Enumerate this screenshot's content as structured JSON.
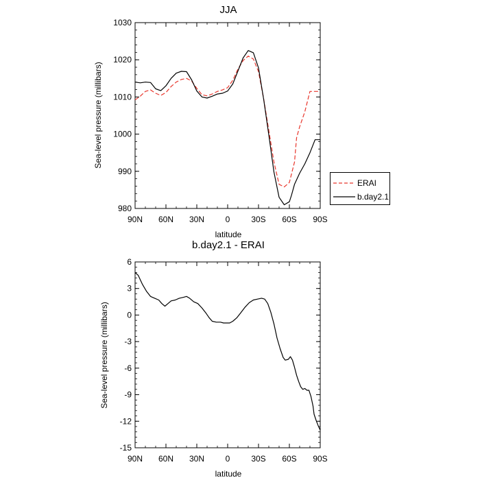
{
  "chart_data": [
    {
      "type": "line",
      "title": "JJA",
      "xlabel": "latitude",
      "ylabel": "Sea-level pressure (millibars)",
      "xlim": [
        90,
        -90
      ],
      "ylim": [
        980,
        1030
      ],
      "xticks": [
        90,
        60,
        30,
        0,
        -30,
        -60,
        -90
      ],
      "xtick_labels": [
        "90N",
        "60N",
        "30N",
        "0",
        "30S",
        "60S",
        "90S"
      ],
      "yticks": [
        980,
        990,
        1000,
        1010,
        1020,
        1030
      ],
      "ytick_labels": [
        "980",
        "990",
        "1000",
        "1010",
        "1020",
        "1030"
      ],
      "grid": false,
      "legend": "right-bottom",
      "series": [
        {
          "name": "ERAI",
          "color": "#e8342a",
          "dash": "dashed",
          "x": [
            90,
            85,
            80,
            75,
            70,
            65,
            60,
            55,
            50,
            45,
            40,
            35,
            30,
            25,
            20,
            15,
            10,
            5,
            0,
            -5,
            -10,
            -15,
            -20,
            -25,
            -30,
            -35,
            -40,
            -45,
            -50,
            -55,
            -60,
            -65,
            -67,
            -70,
            -75,
            -80,
            -85,
            -90
          ],
          "values": [
            1009.2,
            1010.2,
            1011.5,
            1011.9,
            1011.0,
            1010.4,
            1011.2,
            1012.8,
            1014.0,
            1014.7,
            1015.0,
            1014.3,
            1012.3,
            1010.6,
            1010.3,
            1010.8,
            1011.5,
            1011.9,
            1012.5,
            1014.5,
            1017.5,
            1019.8,
            1021.0,
            1020.2,
            1016.8,
            1009.5,
            1001.0,
            992.5,
            986.5,
            985.8,
            987.0,
            992.5,
            999.0,
            1002.0,
            1006.0,
            1011.5,
            1011.5,
            1011.5
          ]
        },
        {
          "name": "b.day2.1",
          "color": "#000000",
          "dash": "solid",
          "x": [
            90,
            85,
            80,
            75,
            70,
            65,
            60,
            55,
            50,
            45,
            40,
            35,
            30,
            25,
            20,
            15,
            10,
            5,
            0,
            -5,
            -10,
            -15,
            -20,
            -25,
            -30,
            -35,
            -40,
            -45,
            -50,
            -55,
            -60,
            -62,
            -65,
            -70,
            -75,
            -80,
            -85,
            -90
          ],
          "values": [
            1014.0,
            1013.8,
            1014.0,
            1013.9,
            1012.2,
            1011.7,
            1013.0,
            1015.0,
            1016.4,
            1016.9,
            1016.8,
            1014.6,
            1011.6,
            1010.0,
            1009.7,
            1010.2,
            1010.8,
            1011.0,
            1011.6,
            1013.5,
            1017.0,
            1020.5,
            1022.5,
            1021.9,
            1017.8,
            1009.4,
            999.8,
            989.8,
            983.0,
            981.0,
            981.8,
            983.5,
            986.5,
            989.5,
            992.0,
            995.0,
            998.5,
            998.5
          ]
        }
      ]
    },
    {
      "type": "line",
      "title": "b.day2.1 - ERAI",
      "xlabel": "latitude",
      "ylabel": "Sea-level pressure (millibars)",
      "xlim": [
        90,
        -90
      ],
      "ylim": [
        -15,
        6
      ],
      "xticks": [
        90,
        60,
        30,
        0,
        -30,
        -60,
        -90
      ],
      "xtick_labels": [
        "90N",
        "60N",
        "30N",
        "0",
        "30S",
        "60S",
        "90S"
      ],
      "yticks": [
        -15,
        -12,
        -9,
        -6,
        -3,
        0,
        3,
        6
      ],
      "ytick_labels": [
        "-15",
        "-12",
        "-9",
        "-6",
        "-3",
        "0",
        "3",
        "6"
      ],
      "grid": false,
      "series": [
        {
          "color": "#000000",
          "dash": "solid",
          "x": [
            90,
            87,
            83,
            79,
            75,
            71,
            67,
            64,
            61,
            58,
            55,
            51,
            47,
            43,
            40,
            37,
            33,
            29,
            25,
            21,
            18,
            15,
            11,
            7,
            4,
            1,
            -2,
            -5,
            -9,
            -13,
            -17,
            -21,
            -25,
            -29,
            -33,
            -36,
            -39,
            -42,
            -45,
            -48,
            -51,
            -54,
            -56,
            -59,
            -61,
            -63,
            -65,
            -67,
            -69,
            -71,
            -73,
            -75,
            -77,
            -79,
            -81,
            -83,
            -84,
            -86,
            -88,
            -90
          ],
          "values": [
            4.8,
            4.5,
            3.5,
            2.7,
            2.1,
            1.9,
            1.7,
            1.3,
            1.0,
            1.3,
            1.6,
            1.7,
            1.9,
            2.0,
            2.1,
            1.9,
            1.5,
            1.3,
            0.8,
            0.2,
            -0.3,
            -0.7,
            -0.8,
            -0.8,
            -0.9,
            -0.9,
            -0.9,
            -0.7,
            -0.3,
            0.3,
            0.9,
            1.4,
            1.7,
            1.8,
            1.9,
            1.8,
            1.3,
            0.3,
            -1.0,
            -2.6,
            -3.8,
            -4.8,
            -5.1,
            -5.0,
            -4.7,
            -5.1,
            -5.9,
            -6.8,
            -7.5,
            -8.1,
            -8.4,
            -8.3,
            -8.5,
            -8.5,
            -9.2,
            -10.3,
            -11.2,
            -11.9,
            -12.5,
            -13.0
          ]
        }
      ]
    }
  ]
}
